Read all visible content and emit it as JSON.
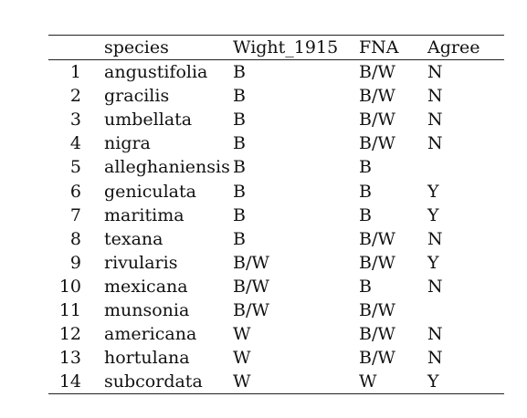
{
  "table": {
    "headers": {
      "index": "",
      "species": "species",
      "wight_1915": "Wight_1915",
      "fna": "FNA",
      "agree": "Agree"
    },
    "rows": [
      {
        "index": "1",
        "species": "angustifolia",
        "wight_1915": "B",
        "fna": "B/W",
        "agree": "N"
      },
      {
        "index": "2",
        "species": "gracilis",
        "wight_1915": "B",
        "fna": "B/W",
        "agree": "N"
      },
      {
        "index": "3",
        "species": "umbellata",
        "wight_1915": "B",
        "fna": "B/W",
        "agree": "N"
      },
      {
        "index": "4",
        "species": "nigra",
        "wight_1915": "B",
        "fna": "B/W",
        "agree": "N"
      },
      {
        "index": "5",
        "species": "alleghaniensis",
        "wight_1915": "B",
        "fna": "B",
        "agree": ""
      },
      {
        "index": "6",
        "species": "geniculata",
        "wight_1915": "B",
        "fna": "B",
        "agree": "Y"
      },
      {
        "index": "7",
        "species": "maritima",
        "wight_1915": "B",
        "fna": "B",
        "agree": "Y"
      },
      {
        "index": "8",
        "species": "texana",
        "wight_1915": "B",
        "fna": "B/W",
        "agree": "N"
      },
      {
        "index": "9",
        "species": "rivularis",
        "wight_1915": "B/W",
        "fna": "B/W",
        "agree": "Y"
      },
      {
        "index": "10",
        "species": "mexicana",
        "wight_1915": "B/W",
        "fna": "B",
        "agree": "N"
      },
      {
        "index": "11",
        "species": "munsonia",
        "wight_1915": "B/W",
        "fna": "B/W",
        "agree": ""
      },
      {
        "index": "12",
        "species": "americana",
        "wight_1915": "W",
        "fna": "B/W",
        "agree": "N"
      },
      {
        "index": "13",
        "species": "hortulana",
        "wight_1915": "W",
        "fna": "B/W",
        "agree": "N"
      },
      {
        "index": "14",
        "species": "subcordata",
        "wight_1915": "W",
        "fna": "W",
        "agree": "Y"
      }
    ]
  }
}
